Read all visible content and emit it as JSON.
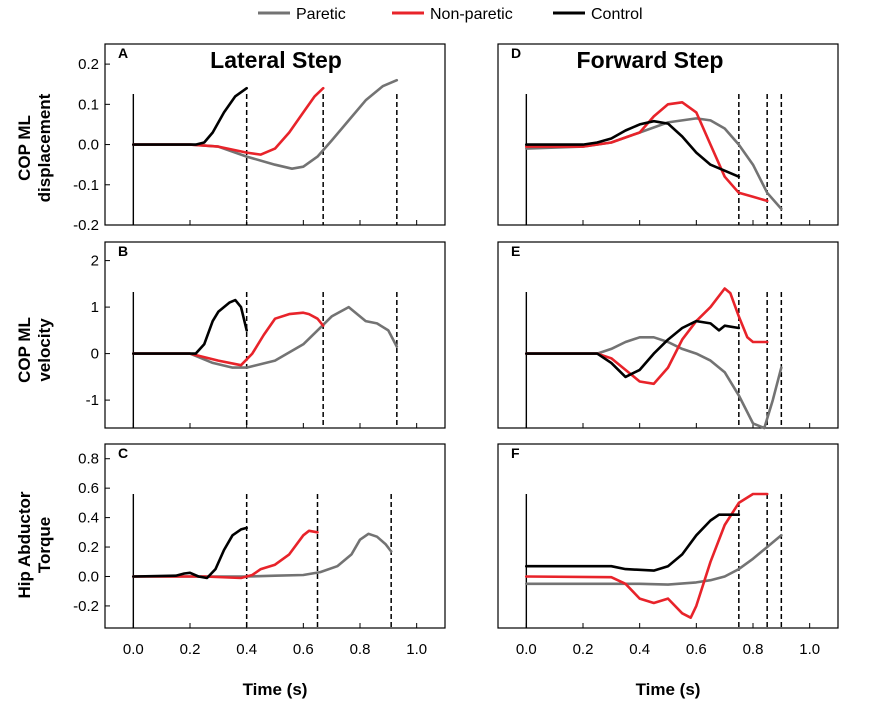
{
  "legend": [
    {
      "name": "Paretic",
      "color": "#737373"
    },
    {
      "name": "Non-paretic",
      "color": "#e8232a"
    },
    {
      "name": "Control",
      "color": "#000000"
    }
  ],
  "column_titles": [
    "Lateral Step",
    "Forward Step"
  ],
  "row_labels": [
    [
      "COP ML",
      "displacement"
    ],
    [
      "COP ML",
      "velocity"
    ],
    [
      "Hip Abductor",
      "Torque"
    ]
  ],
  "xlabel": "Time (s)",
  "xticks": [
    "0.0",
    "0.2",
    "0.4",
    "0.6",
    "0.8",
    "1.0"
  ],
  "chart_data": [
    {
      "panel": "A",
      "type": "line",
      "xlim": [
        -0.1,
        1.1
      ],
      "ylim": [
        -0.2,
        0.25
      ],
      "yticks": [
        -0.2,
        -0.1,
        0.0,
        0.1,
        0.2
      ],
      "ytick_labels": [
        "-0.2",
        "-0.1",
        "0.0",
        "0.1",
        "0.2"
      ],
      "vlines": [
        0.4,
        0.67,
        0.93
      ],
      "series": [
        {
          "name": "Paretic",
          "x": [
            0,
            0.2,
            0.3,
            0.4,
            0.5,
            0.56,
            0.6,
            0.65,
            0.7,
            0.76,
            0.82,
            0.88,
            0.93
          ],
          "y": [
            0,
            0,
            -0.005,
            -0.03,
            -0.05,
            -0.06,
            -0.055,
            -0.03,
            0.01,
            0.06,
            0.11,
            0.145,
            0.16
          ]
        },
        {
          "name": "Non-paretic",
          "x": [
            0,
            0.2,
            0.3,
            0.4,
            0.45,
            0.5,
            0.55,
            0.6,
            0.64,
            0.67
          ],
          "y": [
            0,
            0,
            -0.005,
            -0.02,
            -0.025,
            -0.01,
            0.03,
            0.08,
            0.12,
            0.14
          ]
        },
        {
          "name": "Control",
          "x": [
            0,
            0.22,
            0.25,
            0.28,
            0.32,
            0.36,
            0.4
          ],
          "y": [
            0,
            0,
            0.005,
            0.03,
            0.08,
            0.12,
            0.14
          ]
        }
      ]
    },
    {
      "panel": "D",
      "type": "line",
      "xlim": [
        -0.1,
        1.1
      ],
      "ylim": [
        -0.2,
        0.25
      ],
      "vlines": [
        0.75,
        0.85,
        0.9
      ],
      "series": [
        {
          "name": "Paretic",
          "x": [
            0,
            0.2,
            0.3,
            0.4,
            0.5,
            0.6,
            0.65,
            0.7,
            0.75,
            0.8,
            0.85,
            0.9
          ],
          "y": [
            -0.01,
            -0.005,
            0.005,
            0.03,
            0.055,
            0.065,
            0.06,
            0.04,
            0.0,
            -0.05,
            -0.12,
            -0.16
          ]
        },
        {
          "name": "Non-paretic",
          "x": [
            0,
            0.2,
            0.3,
            0.4,
            0.45,
            0.5,
            0.55,
            0.6,
            0.65,
            0.7,
            0.75,
            0.8,
            0.85
          ],
          "y": [
            -0.005,
            -0.005,
            0.005,
            0.03,
            0.07,
            0.1,
            0.105,
            0.08,
            0.0,
            -0.08,
            -0.12,
            -0.13,
            -0.14
          ]
        },
        {
          "name": "Control",
          "x": [
            0,
            0.2,
            0.25,
            0.3,
            0.35,
            0.4,
            0.45,
            0.5,
            0.55,
            0.6,
            0.65,
            0.7,
            0.75
          ],
          "y": [
            0,
            0,
            0.005,
            0.015,
            0.035,
            0.05,
            0.058,
            0.052,
            0.02,
            -0.02,
            -0.05,
            -0.065,
            -0.08
          ]
        }
      ]
    },
    {
      "panel": "B",
      "type": "line",
      "xlim": [
        -0.1,
        1.1
      ],
      "ylim": [
        -1.6,
        2.4
      ],
      "yticks": [
        -1,
        0,
        1,
        2
      ],
      "ytick_labels": [
        "-1",
        "0",
        "1",
        "2"
      ],
      "vlines": [
        0.4,
        0.67,
        0.93
      ],
      "series": [
        {
          "name": "Paretic",
          "x": [
            0,
            0.2,
            0.28,
            0.35,
            0.4,
            0.5,
            0.6,
            0.65,
            0.7,
            0.76,
            0.82,
            0.86,
            0.9,
            0.93
          ],
          "y": [
            0,
            0,
            -0.2,
            -0.3,
            -0.3,
            -0.15,
            0.2,
            0.5,
            0.8,
            1.0,
            0.7,
            0.65,
            0.5,
            0.15
          ]
        },
        {
          "name": "Non-paretic",
          "x": [
            0,
            0.2,
            0.3,
            0.38,
            0.42,
            0.46,
            0.5,
            0.55,
            0.6,
            0.62,
            0.65,
            0.67
          ],
          "y": [
            0,
            0,
            -0.15,
            -0.25,
            0.0,
            0.4,
            0.75,
            0.85,
            0.88,
            0.85,
            0.75,
            0.6
          ]
        },
        {
          "name": "Control",
          "x": [
            0,
            0.22,
            0.25,
            0.28,
            0.3,
            0.34,
            0.36,
            0.38,
            0.4
          ],
          "y": [
            0,
            0,
            0.2,
            0.7,
            0.9,
            1.1,
            1.15,
            1.0,
            0.5
          ]
        }
      ]
    },
    {
      "panel": "E",
      "type": "line",
      "xlim": [
        -0.1,
        1.1
      ],
      "ylim": [
        -1.6,
        2.4
      ],
      "vlines": [
        0.75,
        0.85,
        0.9
      ],
      "series": [
        {
          "name": "Paretic",
          "x": [
            0,
            0.25,
            0.3,
            0.35,
            0.4,
            0.45,
            0.5,
            0.55,
            0.6,
            0.65,
            0.7,
            0.75,
            0.8,
            0.84,
            0.87,
            0.9
          ],
          "y": [
            0,
            0,
            0.1,
            0.25,
            0.35,
            0.35,
            0.25,
            0.1,
            0.0,
            -0.15,
            -0.4,
            -0.9,
            -1.5,
            -1.6,
            -1.0,
            -0.3
          ]
        },
        {
          "name": "Non-paretic",
          "x": [
            0,
            0.25,
            0.3,
            0.35,
            0.4,
            0.45,
            0.5,
            0.55,
            0.6,
            0.65,
            0.7,
            0.72,
            0.75,
            0.78,
            0.8,
            0.85
          ],
          "y": [
            0,
            0,
            -0.1,
            -0.35,
            -0.6,
            -0.65,
            -0.3,
            0.3,
            0.7,
            1.0,
            1.4,
            1.3,
            0.8,
            0.35,
            0.25,
            0.25
          ]
        },
        {
          "name": "Control",
          "x": [
            0,
            0.25,
            0.3,
            0.35,
            0.4,
            0.45,
            0.5,
            0.55,
            0.6,
            0.65,
            0.68,
            0.7,
            0.75
          ],
          "y": [
            0,
            0,
            -0.2,
            -0.5,
            -0.35,
            0.0,
            0.3,
            0.55,
            0.7,
            0.65,
            0.5,
            0.6,
            0.55
          ]
        }
      ]
    },
    {
      "panel": "C",
      "type": "line",
      "xlim": [
        -0.1,
        1.1
      ],
      "ylim": [
        -0.35,
        0.9
      ],
      "yticks": [
        -0.2,
        0.0,
        0.2,
        0.4,
        0.6,
        0.8
      ],
      "ytick_labels": [
        "-0.2",
        "0.0",
        "0.2",
        "0.4",
        "0.6",
        "0.8"
      ],
      "vlines": [
        0.4,
        0.65,
        0.91
      ],
      "series": [
        {
          "name": "Paretic",
          "x": [
            0,
            0.4,
            0.5,
            0.6,
            0.66,
            0.72,
            0.77,
            0.8,
            0.83,
            0.86,
            0.89,
            0.91
          ],
          "y": [
            0,
            0,
            0.005,
            0.01,
            0.03,
            0.07,
            0.15,
            0.25,
            0.29,
            0.27,
            0.22,
            0.17
          ]
        },
        {
          "name": "Non-paretic",
          "x": [
            0,
            0.25,
            0.38,
            0.42,
            0.45,
            0.5,
            0.55,
            0.6,
            0.62,
            0.65
          ],
          "y": [
            0,
            0,
            -0.01,
            0.01,
            0.05,
            0.08,
            0.15,
            0.28,
            0.31,
            0.3
          ]
        },
        {
          "name": "Control",
          "x": [
            0,
            0.15,
            0.18,
            0.2,
            0.23,
            0.26,
            0.29,
            0.32,
            0.35,
            0.38,
            0.4
          ],
          "y": [
            0,
            0.005,
            0.02,
            0.025,
            0.0,
            -0.01,
            0.05,
            0.18,
            0.28,
            0.32,
            0.33
          ]
        }
      ]
    },
    {
      "panel": "F",
      "type": "line",
      "xlim": [
        -0.1,
        1.1
      ],
      "ylim": [
        -0.35,
        0.9
      ],
      "vlines": [
        0.75,
        0.85,
        0.9
      ],
      "series": [
        {
          "name": "Paretic",
          "x": [
            0,
            0.3,
            0.4,
            0.5,
            0.6,
            0.65,
            0.7,
            0.75,
            0.8,
            0.85,
            0.9
          ],
          "y": [
            -0.05,
            -0.05,
            -0.05,
            -0.055,
            -0.04,
            -0.025,
            0.0,
            0.05,
            0.12,
            0.2,
            0.28
          ]
        },
        {
          "name": "Non-paretic",
          "x": [
            0,
            0.3,
            0.35,
            0.4,
            0.45,
            0.5,
            0.55,
            0.58,
            0.6,
            0.65,
            0.7,
            0.75,
            0.8,
            0.85
          ],
          "y": [
            0,
            -0.005,
            -0.05,
            -0.15,
            -0.18,
            -0.15,
            -0.25,
            -0.28,
            -0.2,
            0.1,
            0.35,
            0.5,
            0.56,
            0.56
          ]
        },
        {
          "name": "Control",
          "x": [
            0,
            0.3,
            0.35,
            0.45,
            0.5,
            0.55,
            0.6,
            0.65,
            0.68,
            0.7,
            0.72,
            0.75
          ],
          "y": [
            0.07,
            0.07,
            0.05,
            0.04,
            0.07,
            0.15,
            0.28,
            0.38,
            0.42,
            0.42,
            0.42,
            0.42
          ]
        }
      ]
    }
  ]
}
